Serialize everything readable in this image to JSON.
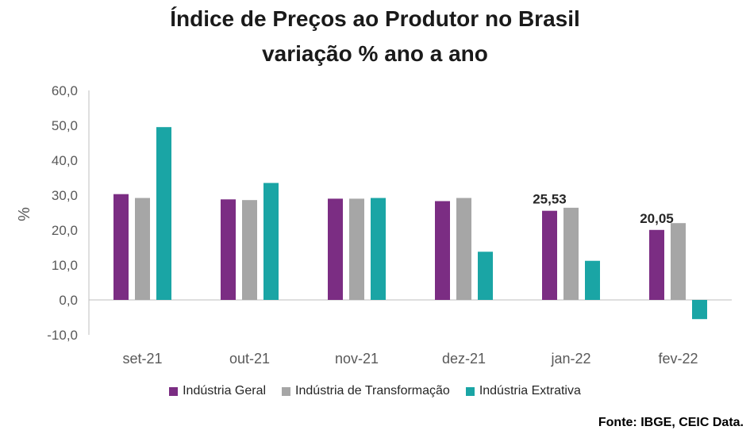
{
  "chart_data": {
    "type": "bar",
    "title": "Índice de Preços ao Produtor no Brasil",
    "subtitle": "variação % ano a ano",
    "ylabel": "%",
    "xlabel": "",
    "ylim": [
      -10,
      60
    ],
    "yticks": [
      "60,0",
      "50,0",
      "40,0",
      "30,0",
      "20,0",
      "10,0",
      "0,0",
      "-10,0"
    ],
    "ytick_values": [
      60,
      50,
      40,
      30,
      20,
      10,
      0,
      -10
    ],
    "categories": [
      "set-21",
      "out-21",
      "nov-21",
      "dez-21",
      "jan-22",
      "fev-22"
    ],
    "series": [
      {
        "name": "Indústria Geral",
        "color": "#7B2D83",
        "values": [
          30.3,
          28.8,
          29.0,
          28.3,
          25.53,
          20.05
        ]
      },
      {
        "name": "Indústria de Transformação",
        "color": "#A6A6A6",
        "values": [
          29.2,
          28.6,
          29.0,
          29.2,
          26.4,
          22.0
        ]
      },
      {
        "name": "Indústria Extrativa",
        "color": "#1AA5A5",
        "values": [
          49.5,
          33.5,
          29.2,
          13.8,
          11.2,
          -5.5
        ]
      }
    ],
    "data_labels": [
      {
        "category_index": 4,
        "series_index": 0,
        "text": "25,53"
      },
      {
        "category_index": 5,
        "series_index": 0,
        "text": "20,05"
      }
    ],
    "legend_position": "bottom",
    "grid": false
  },
  "source": "Fonte: IBGE, CEIC Data."
}
